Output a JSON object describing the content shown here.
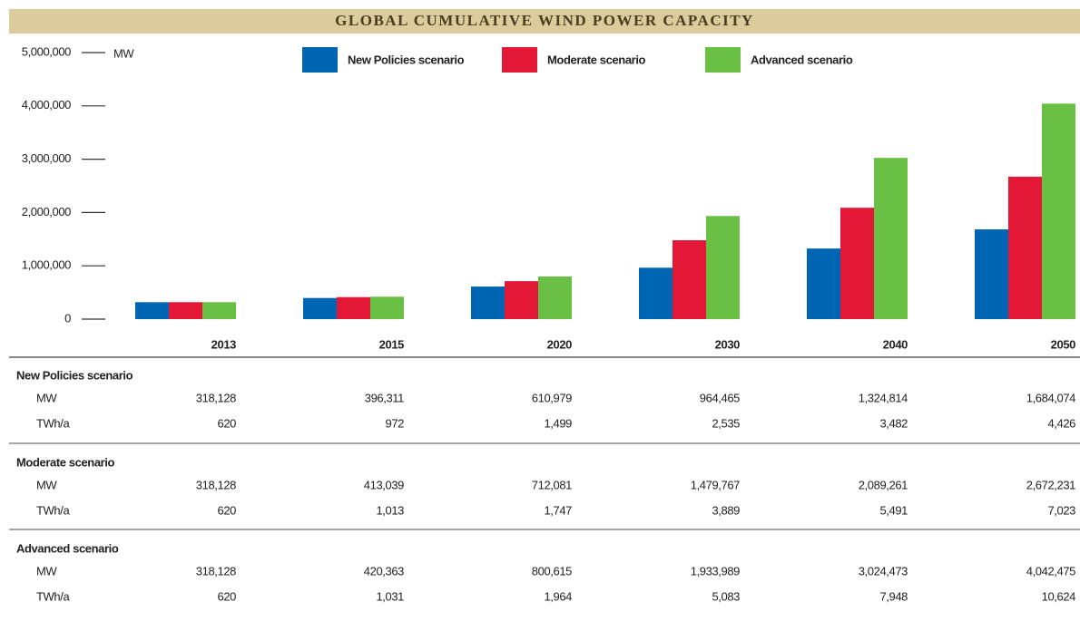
{
  "chart_data": {
    "type": "bar",
    "title": "GLOBAL CUMULATIVE WIND POWER CAPACITY",
    "y_label": "MW",
    "categories": [
      "2013",
      "2015",
      "2020",
      "2030",
      "2040",
      "2050"
    ],
    "series": [
      {
        "name": "New Policies scenario",
        "color": "#0066b3",
        "values": [
          318128,
          396311,
          610979,
          964465,
          1324814,
          1684074
        ],
        "value_labels": [
          "318,128",
          "396,311",
          "610,979",
          "964,465",
          "1,324,814",
          "1,684,074"
        ]
      },
      {
        "name": "Moderate scenario",
        "color": "#e31837",
        "values": [
          318128,
          413039,
          712081,
          1479767,
          2089261,
          2672231
        ],
        "value_labels": [
          "318,128",
          "413,039",
          "712,081",
          "1,479,767",
          "2,089,261",
          "2,672,231"
        ]
      },
      {
        "name": "Advanced scenario",
        "color": "#6abf45",
        "values": [
          318128,
          420363,
          800615,
          1933989,
          3024473,
          4042475
        ],
        "value_labels": [
          "318,128",
          "420,363",
          "800,615",
          "1,933,989",
          "3,024,473",
          "4,042,475"
        ]
      }
    ],
    "ylim": [
      0,
      5000000
    ],
    "yticks": [
      0,
      {
        "value": 1000000,
        "label": "1,000,000"
      },
      {
        "value": 2000000,
        "label": "2,000,000"
      },
      {
        "value": 3000000,
        "label": "3,000,000"
      },
      {
        "value": 4000000,
        "label": "4,000,000"
      },
      {
        "value": 5000000,
        "label": "5,000,000"
      }
    ],
    "legend": "top"
  },
  "table": {
    "rows": [
      {
        "units": [
          "MW",
          "TWh/a"
        ],
        "twh": [
          "620",
          "972",
          "1,499",
          "2,535",
          "3,482",
          "4,426"
        ]
      },
      {
        "units": [
          "MW",
          "TWh/a"
        ],
        "twh": [
          "620",
          "1,013",
          "1,747",
          "3,889",
          "5,491",
          "7,023"
        ]
      },
      {
        "units": [
          "MW",
          "TWh/a"
        ],
        "twh": [
          "620",
          "1,031",
          "1,964",
          "5,083",
          "7,948",
          "10,624"
        ]
      }
    ]
  }
}
